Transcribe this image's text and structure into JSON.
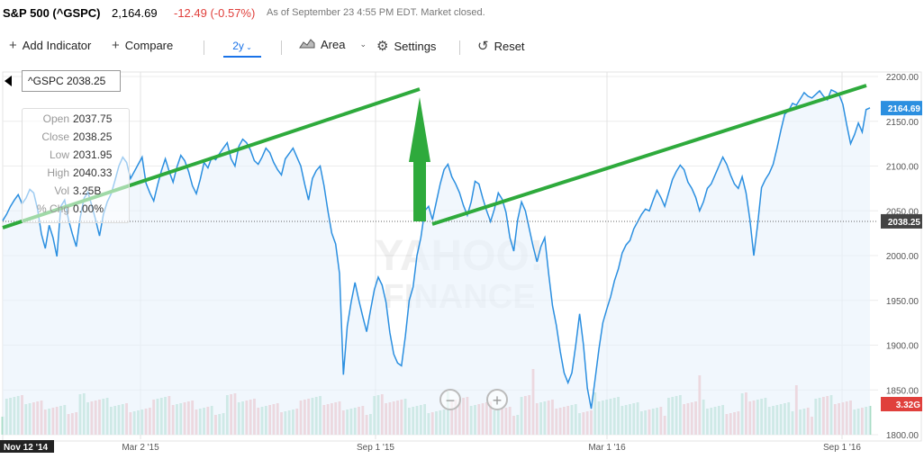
{
  "header": {
    "name": "S&P 500 (^GSPC)",
    "price": "2,164.69",
    "change": "-12.49 (-0.57%)",
    "time": "As of September 23 4:55 PM EDT. Market closed."
  },
  "toolbar": {
    "add_indicator": "Add Indicator",
    "compare": "Compare",
    "range": "2y",
    "chart_type": "Area",
    "settings": "Settings",
    "reset": "Reset"
  },
  "tooltip": {
    "label": "^GSPC 2038.25",
    "rows": [
      {
        "k": "Open",
        "v": "2037.75"
      },
      {
        "k": "Close",
        "v": "2038.25"
      },
      {
        "k": "Low",
        "v": "2031.95"
      },
      {
        "k": "High",
        "v": "2040.33"
      },
      {
        "k": "Vol",
        "v": "3.25B"
      },
      {
        "k": "% Chg",
        "v": "0.00%"
      }
    ]
  },
  "watermark": {
    "line1": "YAHOO!",
    "line2": "FINANCE"
  },
  "colors": {
    "line": "#2b8fe0",
    "area": "#e8f2fb",
    "trend": "#2eaa3c",
    "down": "#e0403c",
    "vol_up": "#a9dcc6",
    "vol_down": "#f2b1b4"
  },
  "chart_data": {
    "type": "area",
    "ylim": [
      1800,
      2200
    ],
    "yticks": [
      "2200.00",
      "2150.00",
      "2100.00",
      "2050.00",
      "2000.00",
      "1950.00",
      "1900.00",
      "1850.00",
      "1800.00"
    ],
    "xticks": [
      "Nov 12 '14",
      "Mar 2 '15",
      "Sep 1 '15",
      "Mar 1 '16",
      "Sep 1 '16"
    ],
    "last_price_label": "2164.69",
    "crosshair_label": "2038.25",
    "volume_label": "3.32G",
    "series": [
      {
        "values": [
          2039,
          2046,
          2055,
          2062,
          2068,
          2058,
          2064,
          2074,
          2070,
          2052,
          2024,
          2008,
          2034,
          2020,
          1999,
          2055,
          2062,
          2040,
          2024,
          2010,
          2042,
          2064,
          2071,
          2056,
          2040,
          2022,
          2046,
          2060,
          2069,
          2084,
          2100,
          2110,
          2104,
          2086,
          2094,
          2102,
          2110,
          2081,
          2070,
          2061,
          2079,
          2095,
          2108,
          2094,
          2082,
          2099,
          2112,
          2106,
          2094,
          2078,
          2069,
          2085,
          2104,
          2098,
          2110,
          2107,
          2114,
          2120,
          2126,
          2108,
          2100,
          2122,
          2130,
          2126,
          2118,
          2106,
          2102,
          2110,
          2120,
          2115,
          2104,
          2096,
          2090,
          2108,
          2114,
          2120,
          2110,
          2100,
          2080,
          2062,
          2086,
          2095,
          2100,
          2078,
          2050,
          2025,
          2013,
          1980,
          1867,
          1921,
          1948,
          1970,
          1950,
          1932,
          1915,
          1939,
          1962,
          1976,
          1967,
          1948,
          1914,
          1890,
          1880,
          1877,
          1910,
          1950,
          1965,
          2000,
          2020,
          2050,
          2055,
          2040,
          2060,
          2080,
          2096,
          2102,
          2088,
          2080,
          2070,
          2056,
          2045,
          2060,
          2083,
          2080,
          2064,
          2050,
          2038,
          2052,
          2070,
          2063,
          2048,
          2020,
          2005,
          2040,
          2060,
          2050,
          2030,
          2010,
          1993,
          2010,
          2020,
          1980,
          1944,
          1922,
          1893,
          1869,
          1858,
          1869,
          1900,
          1935,
          1900,
          1852,
          1829,
          1862,
          1896,
          1925,
          1940,
          1954,
          1972,
          1985,
          2003,
          2012,
          2017,
          2030,
          2038,
          2046,
          2052,
          2050,
          2062,
          2073,
          2065,
          2055,
          2070,
          2085,
          2094,
          2101,
          2096,
          2082,
          2075,
          2065,
          2050,
          2060,
          2075,
          2080,
          2090,
          2100,
          2110,
          2102,
          2090,
          2080,
          2075,
          2088,
          2070,
          2040,
          2000,
          2035,
          2076,
          2085,
          2092,
          2102,
          2120,
          2140,
          2158,
          2162,
          2170,
          2168,
          2175,
          2182,
          2178,
          2176,
          2180,
          2184,
          2178,
          2174,
          2185,
          2183,
          2180,
          2169,
          2146,
          2125,
          2135,
          2148,
          2138,
          2163,
          2165
        ]
      }
    ]
  }
}
